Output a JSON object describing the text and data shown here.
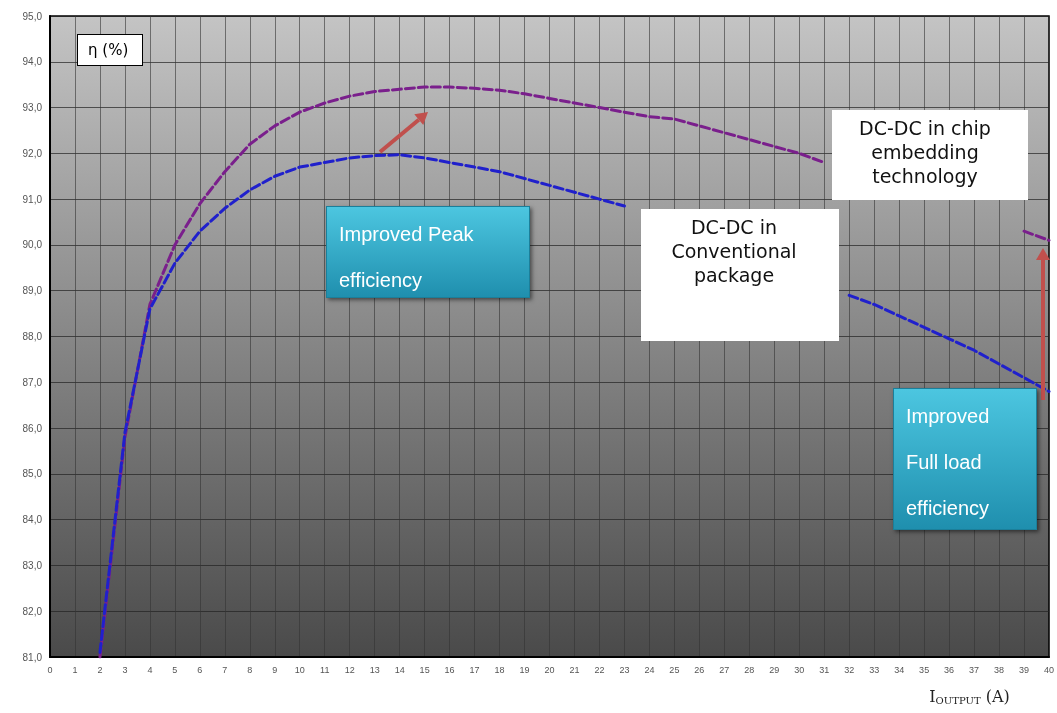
{
  "chart_data": {
    "type": "line",
    "xlabel": "I$_{OUTPUT}$ (A)",
    "ylabel": "η (%)",
    "x": [
      2,
      3,
      4,
      5,
      6,
      7,
      8,
      9,
      10,
      11,
      12,
      13,
      14,
      15,
      16,
      17,
      18,
      19,
      20,
      21,
      22,
      23,
      24,
      25,
      26,
      27,
      28,
      29,
      30,
      31,
      32,
      33,
      34,
      35,
      36,
      37,
      38,
      39,
      40
    ],
    "series": [
      {
        "name": "DC-DC in  chip embedding technology",
        "color": "#7a1f8c",
        "values": [
          81.0,
          85.8,
          88.7,
          90.0,
          90.9,
          91.6,
          92.2,
          92.6,
          92.9,
          93.1,
          93.25,
          93.35,
          93.4,
          93.45,
          93.45,
          93.42,
          93.38,
          93.3,
          93.2,
          93.1,
          93.0,
          92.9,
          92.8,
          92.75,
          92.6,
          92.45,
          92.3,
          92.15,
          92.0,
          91.8,
          null,
          null,
          null,
          null,
          null,
          null,
          null,
          90.3,
          90.1
        ]
      },
      {
        "name": "DC-DC in Conventional package",
        "color": "#2020cc",
        "values": [
          81.1,
          85.9,
          88.6,
          89.6,
          90.3,
          90.8,
          91.2,
          91.5,
          91.7,
          91.8,
          91.9,
          91.95,
          91.97,
          91.9,
          91.8,
          91.7,
          91.6,
          91.45,
          91.3,
          91.15,
          91.0,
          90.85,
          null,
          null,
          null,
          null,
          null,
          null,
          null,
          null,
          88.9,
          88.7,
          88.45,
          88.2,
          87.95,
          87.7,
          87.4,
          87.1,
          86.8
        ]
      }
    ],
    "annotations": [
      "Improved Peak efficiency",
      "Improved Full load efficiency"
    ],
    "xlim": [
      0,
      40
    ],
    "xticks": [
      0,
      1,
      2,
      3,
      4,
      5,
      6,
      7,
      8,
      9,
      10,
      11,
      12,
      13,
      14,
      15,
      16,
      17,
      18,
      19,
      20,
      21,
      22,
      23,
      24,
      25,
      26,
      27,
      28,
      29,
      30,
      31,
      32,
      33,
      34,
      35,
      36,
      37,
      38,
      39,
      40
    ],
    "ylim": [
      81,
      95
    ],
    "yticks": [
      {
        "value": 81,
        "label": "81,0"
      },
      {
        "value": 82,
        "label": "82,0"
      },
      {
        "value": 83,
        "label": "83,0"
      },
      {
        "value": 84,
        "label": "84,0"
      },
      {
        "value": 85,
        "label": "85,0"
      },
      {
        "value": 86,
        "label": "86,0"
      },
      {
        "value": 87,
        "label": "87,0"
      },
      {
        "value": 88,
        "label": "88,0"
      },
      {
        "value": 89,
        "label": "89,0"
      },
      {
        "value": 90,
        "label": "90,0"
      },
      {
        "value": 91,
        "label": "91,0"
      },
      {
        "value": 92,
        "label": "92,0"
      },
      {
        "value": 93,
        "label": "93,0"
      },
      {
        "value": 94,
        "label": "94,0"
      },
      {
        "value": 95,
        "label": "95,0"
      }
    ],
    "grid": true,
    "legend": false,
    "line_style": "dashed"
  }
}
